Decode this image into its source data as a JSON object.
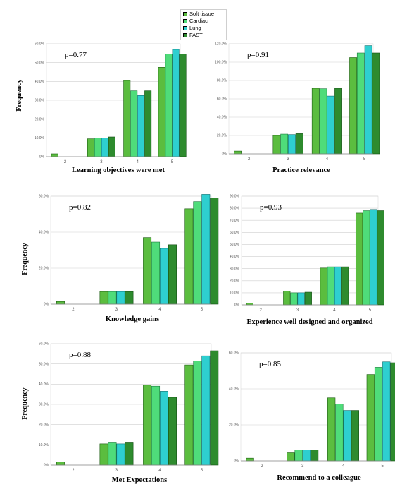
{
  "legend": {
    "items": [
      {
        "label": "Soft tissue",
        "color": "#5bbd3f"
      },
      {
        "label": "Cardiac",
        "color": "#4fdc7a"
      },
      {
        "label": "Lung",
        "color": "#2ecfd0"
      },
      {
        "label": "FAST",
        "color": "#2e8b2e"
      }
    ]
  },
  "chart_data": [
    {
      "type": "bar",
      "title": "Learning objectives were met",
      "ylabel": "Frequency",
      "pvalue": "p=0.77",
      "categories": [
        "2",
        "3",
        "4",
        "5"
      ],
      "yticks": [
        "0%",
        "10.0%",
        "20.0%",
        "30.0%",
        "40.0%",
        "50.0%",
        "60.0%"
      ],
      "ylim": [
        0,
        60
      ],
      "series": [
        {
          "name": "Soft tissue",
          "values": [
            1.5,
            9.5,
            40.5,
            47.5
          ]
        },
        {
          "name": "Cardiac",
          "values": [
            0,
            10,
            35,
            54.5
          ]
        },
        {
          "name": "Lung",
          "values": [
            0,
            10,
            32.5,
            57
          ]
        },
        {
          "name": "FAST",
          "values": [
            0,
            10.5,
            35,
            54.5
          ]
        }
      ]
    },
    {
      "type": "bar",
      "title": "Practice relevance",
      "ylabel": "",
      "pvalue": "p=0.91",
      "categories": [
        "2",
        "3",
        "4",
        "5"
      ],
      "yticks": [
        "0%",
        "20.0%",
        "40.0%",
        "60.0%",
        "80.0%",
        "100.0%",
        "120.0%"
      ],
      "ylim": [
        0,
        120
      ],
      "series": [
        {
          "name": "Soft tissue",
          "values": [
            3,
            20,
            71.5,
            105
          ]
        },
        {
          "name": "Cardiac",
          "values": [
            0,
            21.5,
            71,
            110
          ]
        },
        {
          "name": "Lung",
          "values": [
            0,
            21,
            63,
            118
          ]
        },
        {
          "name": "FAST",
          "values": [
            0,
            22,
            71.5,
            110
          ]
        }
      ]
    },
    {
      "type": "bar",
      "title": "Knowledge gains",
      "ylabel": "Frequency",
      "pvalue": "p=0.82",
      "categories": [
        "2",
        "3",
        "4",
        "5"
      ],
      "yticks": [
        "0%",
        "20.0%",
        "40.0%",
        "60.0%"
      ],
      "ylim": [
        0,
        60
      ],
      "series": [
        {
          "name": "Soft tissue",
          "values": [
            1.5,
            7,
            37,
            53
          ]
        },
        {
          "name": "Cardiac",
          "values": [
            0,
            7,
            34.5,
            57
          ]
        },
        {
          "name": "Lung",
          "values": [
            0,
            7,
            31,
            61
          ]
        },
        {
          "name": "FAST",
          "values": [
            0,
            7,
            33,
            59
          ]
        }
      ]
    },
    {
      "type": "bar",
      "title": "Experience well designed and organized",
      "ylabel": "",
      "pvalue": "p=0.93",
      "categories": [
        "2",
        "3",
        "4",
        "5"
      ],
      "yticks": [
        "0%",
        "10.0%",
        "20.0%",
        "30.0%",
        "40.0%",
        "50.0%",
        "60.0%",
        "70.0%",
        "80.0%",
        "90.0%"
      ],
      "ylim": [
        0,
        90
      ],
      "series": [
        {
          "name": "Soft tissue",
          "values": [
            1.5,
            11.5,
            30.5,
            76
          ]
        },
        {
          "name": "Cardiac",
          "values": [
            0,
            10,
            31.5,
            78
          ]
        },
        {
          "name": "Lung",
          "values": [
            0,
            10,
            31.5,
            79
          ]
        },
        {
          "name": "FAST",
          "values": [
            0,
            10.5,
            31.5,
            78
          ]
        }
      ]
    },
    {
      "type": "bar",
      "title": "Met Expectations",
      "ylabel": "Frequency",
      "pvalue": "p=0.88",
      "categories": [
        "2",
        "3",
        "4",
        "5"
      ],
      "yticks": [
        "0%",
        "10.0%",
        "20.0%",
        "30.0%",
        "40.0%",
        "50.0%",
        "60.0%"
      ],
      "ylim": [
        0,
        60
      ],
      "series": [
        {
          "name": "Soft tissue",
          "values": [
            1.5,
            10.5,
            39.5,
            49.5
          ]
        },
        {
          "name": "Cardiac",
          "values": [
            0,
            11,
            39,
            51.5
          ]
        },
        {
          "name": "Lung",
          "values": [
            0,
            10.5,
            36.5,
            54
          ]
        },
        {
          "name": "FAST",
          "values": [
            0,
            11,
            33.5,
            56.5
          ]
        }
      ]
    },
    {
      "type": "bar",
      "title": "Recommend to a colleague",
      "ylabel": "",
      "pvalue": "p=0.85",
      "categories": [
        "2",
        "3",
        "4",
        "5"
      ],
      "yticks": [
        "0%",
        "20.0%",
        "40.0%",
        "60.0%"
      ],
      "ylim": [
        0,
        60
      ],
      "series": [
        {
          "name": "Soft tissue",
          "values": [
            1.5,
            4.5,
            35,
            48
          ]
        },
        {
          "name": "Cardiac",
          "values": [
            0,
            6,
            31.5,
            52
          ]
        },
        {
          "name": "Lung",
          "values": [
            0,
            6,
            28,
            55
          ]
        },
        {
          "name": "FAST",
          "values": [
            0,
            6,
            28,
            54.5
          ]
        }
      ]
    }
  ]
}
